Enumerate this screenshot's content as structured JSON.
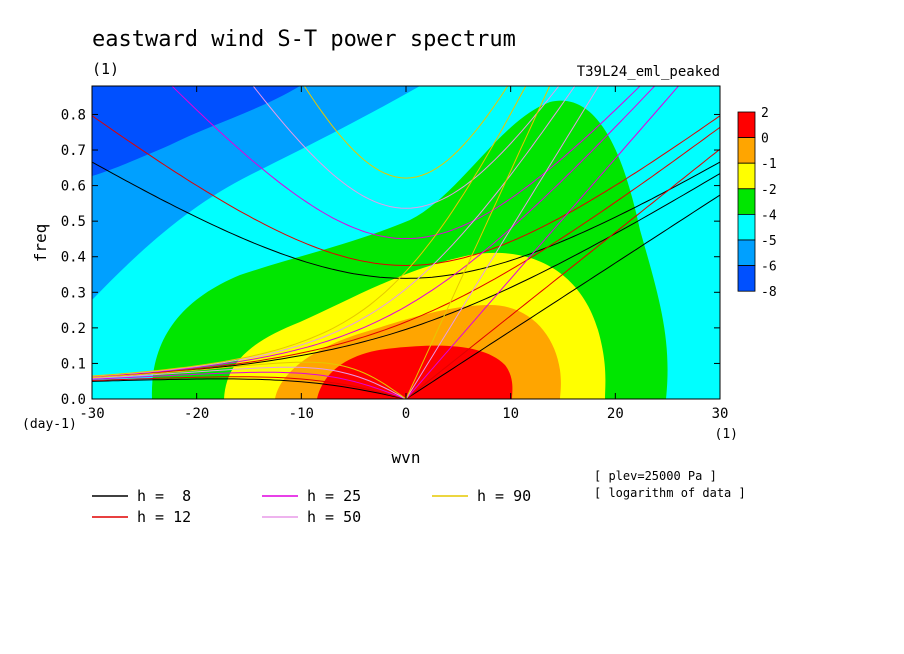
{
  "chart_data": {
    "type": "heatmap",
    "title": "eastward wind S-T power spectrum",
    "subtitle": "(1)",
    "run_label": "T39L24_eml_peaked",
    "xlabel": "wvn",
    "ylabel": "freq",
    "x_unit_label": "(1)",
    "y_unit_label": "(day-1)",
    "xlim": [
      -30,
      30
    ],
    "ylim": [
      0,
      0.88
    ],
    "x_ticks": [
      -30,
      -20,
      -10,
      0,
      10,
      20,
      30
    ],
    "x_tick_labels": [
      "-30",
      "-20",
      "-10",
      "0",
      "10",
      "20",
      "30"
    ],
    "y_ticks": [
      0,
      0.1,
      0.2,
      0.3,
      0.4,
      0.5,
      0.6,
      0.7,
      0.8
    ],
    "y_tick_labels": [
      "0.0",
      "0.1",
      "0.2",
      "0.3",
      "0.4",
      "0.5",
      "0.6",
      "0.7",
      "0.8"
    ],
    "colorbar": {
      "levels": [
        "2",
        "0",
        "-1",
        "-2",
        "-4",
        "-5",
        "-6",
        "-8"
      ],
      "colors": [
        "#ff0000",
        "#ffa500",
        "#ffff00",
        "#00e600",
        "#00ffff",
        "#00a0ff",
        "#0050ff"
      ]
    },
    "annotations": [
      "[ plev=25000 Pa ]",
      "[ logarithm of data ]"
    ],
    "series": [
      {
        "name": "h =  8",
        "color": "#000000",
        "equivalent_depth": 8
      },
      {
        "name": "h = 12",
        "color": "#e00000",
        "equivalent_depth": 12
      },
      {
        "name": "h = 25",
        "color": "#e000e0",
        "equivalent_depth": 25
      },
      {
        "name": "h = 50",
        "color": "#e89ae8",
        "equivalent_depth": 50
      },
      {
        "name": "h = 90",
        "color": "#e6c800",
        "equivalent_depth": 90
      }
    ]
  }
}
